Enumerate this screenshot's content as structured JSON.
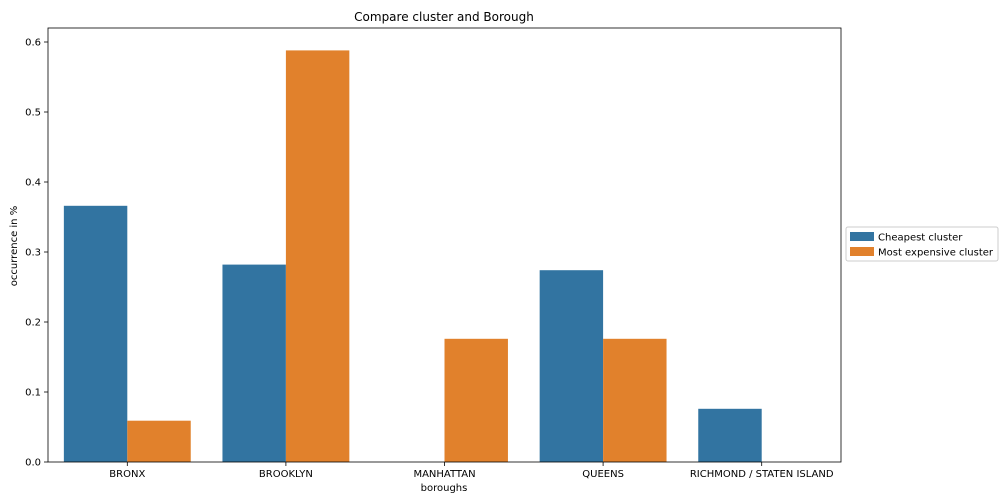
{
  "chart_data": {
    "type": "bar",
    "title": "Compare cluster and Borough",
    "xlabel": "boroughs",
    "ylabel": "occurrence in %",
    "categories": [
      "BRONX",
      "BROOKLYN",
      "MANHATTAN",
      "QUEENS",
      "RICHMOND / STATEN ISLAND"
    ],
    "series": [
      {
        "name": "Cheapest cluster",
        "color": "#3274a1",
        "values": [
          0.366,
          0.282,
          0.0,
          0.274,
          0.076
        ]
      },
      {
        "name": "Most expensive cluster",
        "color": "#e1812c",
        "values": [
          0.059,
          0.588,
          0.176,
          0.176,
          0.0
        ]
      }
    ],
    "ylim": [
      0,
      0.62
    ],
    "yticks": [
      "0.0",
      "0.1",
      "0.2",
      "0.3",
      "0.4",
      "0.5",
      "0.6"
    ],
    "ytick_values": [
      0.0,
      0.1,
      0.2,
      0.3,
      0.4,
      0.5,
      0.6
    ],
    "grid": false,
    "legend_placement": "outside-right"
  }
}
